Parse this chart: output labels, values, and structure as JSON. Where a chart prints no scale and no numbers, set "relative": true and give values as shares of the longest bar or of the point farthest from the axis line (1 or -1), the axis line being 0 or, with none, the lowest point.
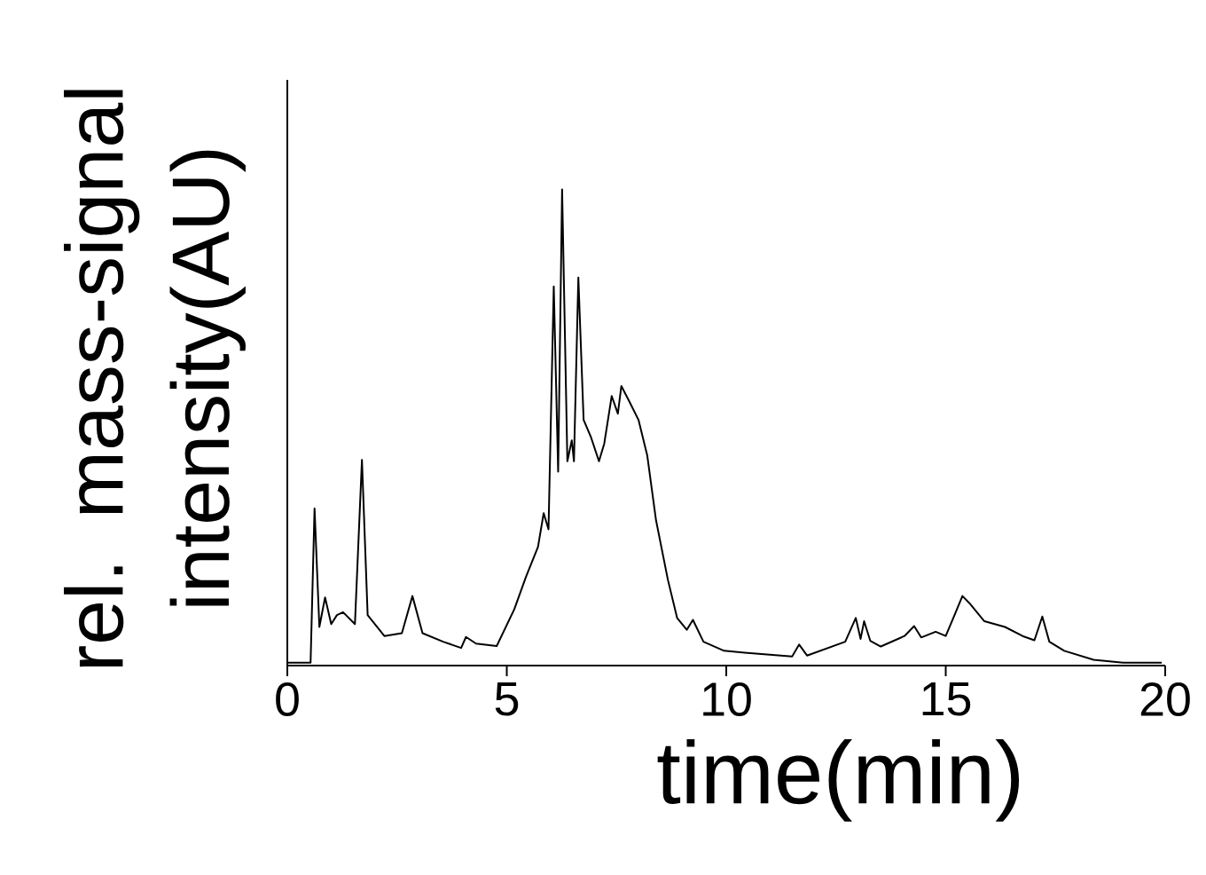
{
  "chart_data": {
    "type": "line",
    "relative": true,
    "xlabel": "time(min)",
    "ylabel": "rel. mass-signal intensity(AU)",
    "xlim": [
      0,
      20
    ],
    "xticks": [
      0,
      5,
      10,
      15,
      20
    ],
    "color": "#000000",
    "grid": false,
    "marker": "none",
    "line_style": "solid",
    "x": [
      0.01,
      0.53,
      0.62,
      0.73,
      0.86,
      1.0,
      1.13,
      1.27,
      1.54,
      1.7,
      1.83,
      2.21,
      2.61,
      2.85,
      3.08,
      3.55,
      3.96,
      4.07,
      4.3,
      4.77,
      5.17,
      5.44,
      5.71,
      5.84,
      5.95,
      6.07,
      6.17,
      6.26,
      6.38,
      6.48,
      6.53,
      6.63,
      6.75,
      6.92,
      7.1,
      7.22,
      7.39,
      7.53,
      7.61,
      7.8,
      8.0,
      8.2,
      8.4,
      8.67,
      8.88,
      9.1,
      9.24,
      9.48,
      9.95,
      10.42,
      11.5,
      11.66,
      11.84,
      12.71,
      12.95,
      13.06,
      13.14,
      13.28,
      13.52,
      14.06,
      14.28,
      14.44,
      14.77,
      15.0,
      15.2,
      15.38,
      15.54,
      15.88,
      16.35,
      16.75,
      17.02,
      17.2,
      17.36,
      17.7,
      18.37,
      19.04,
      19.92
    ],
    "values": [
      0.006,
      0.006,
      0.33,
      0.081,
      0.143,
      0.087,
      0.106,
      0.112,
      0.087,
      0.432,
      0.106,
      0.062,
      0.068,
      0.146,
      0.068,
      0.05,
      0.037,
      0.06,
      0.046,
      0.041,
      0.118,
      0.187,
      0.249,
      0.32,
      0.286,
      0.796,
      0.407,
      1.0,
      0.429,
      0.473,
      0.429,
      0.815,
      0.516,
      0.479,
      0.429,
      0.466,
      0.566,
      0.529,
      0.587,
      0.553,
      0.516,
      0.441,
      0.305,
      0.18,
      0.1,
      0.075,
      0.096,
      0.05,
      0.031,
      0.027,
      0.019,
      0.044,
      0.021,
      0.05,
      0.1,
      0.056,
      0.093,
      0.052,
      0.04,
      0.062,
      0.083,
      0.059,
      0.071,
      0.062,
      0.106,
      0.146,
      0.131,
      0.093,
      0.081,
      0.062,
      0.053,
      0.103,
      0.05,
      0.031,
      0.012,
      0.006,
      0.006
    ]
  }
}
